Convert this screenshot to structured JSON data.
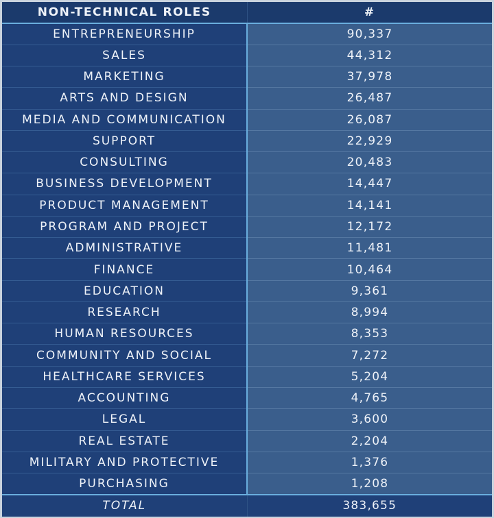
{
  "chart_data": {
    "type": "table",
    "columns": [
      "NON-TECHNICAL ROLES",
      "#"
    ],
    "rows": [
      [
        "ENTREPRENEURSHIP",
        "90,337"
      ],
      [
        "SALES",
        "44,312"
      ],
      [
        "MARKETING",
        "37,978"
      ],
      [
        "ARTS AND DESIGN",
        "26,487"
      ],
      [
        "MEDIA AND COMMUNICATION",
        "26,087"
      ],
      [
        "SUPPORT",
        "22,929"
      ],
      [
        "CONSULTING",
        "20,483"
      ],
      [
        "BUSINESS DEVELOPMENT",
        "14,447"
      ],
      [
        "PRODUCT MANAGEMENT",
        "14,141"
      ],
      [
        "PROGRAM AND PROJECT",
        "12,172"
      ],
      [
        "ADMINISTRATIVE",
        "11,481"
      ],
      [
        "FINANCE",
        "10,464"
      ],
      [
        "EDUCATION",
        "9,361"
      ],
      [
        "RESEARCH",
        "8,994"
      ],
      [
        "HUMAN RESOURCES",
        "8,353"
      ],
      [
        "COMMUNITY AND SOCIAL",
        "7,272"
      ],
      [
        "HEALTHCARE SERVICES",
        "5,204"
      ],
      [
        "ACCOUNTING",
        "4,765"
      ],
      [
        "LEGAL",
        "3,600"
      ],
      [
        "REAL ESTATE",
        "2,204"
      ],
      [
        "MILITARY AND PROTECTIVE",
        "1,376"
      ],
      [
        "PURCHASING",
        "1,208"
      ]
    ],
    "total": [
      "TOTAL",
      "383,655"
    ],
    "colors": {
      "header": "#1b3a6c",
      "role_column": "#1f4078",
      "value_column": "#3a5e8c",
      "divider": "#6aaede",
      "text": "#eef2f8"
    }
  }
}
